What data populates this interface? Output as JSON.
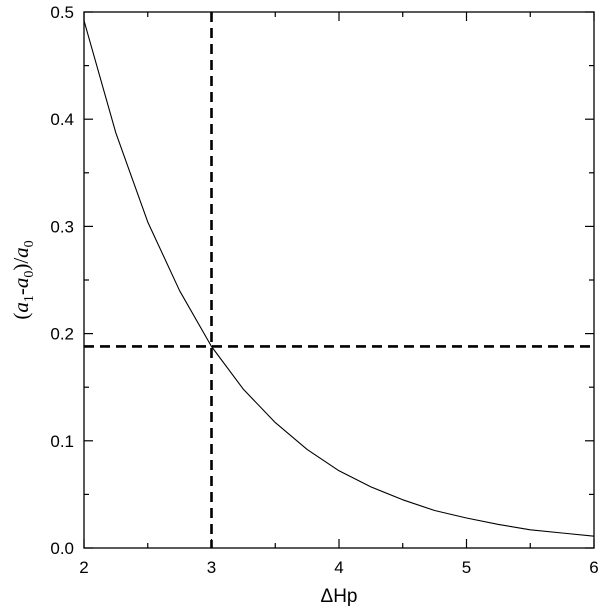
{
  "chart_data": {
    "type": "line",
    "title": "",
    "xlabel": "ΔHp",
    "ylabel": "(a1-a0)/a0",
    "ylabel_parts": {
      "open": "(",
      "a1": "a",
      "sub1": "1",
      "dash": "-",
      "a0": "a",
      "sub0": "0",
      "close": ")/",
      "a2": "a",
      "sub2": "0"
    },
    "xlim": [
      2,
      6
    ],
    "ylim": [
      0.0,
      0.5
    ],
    "x_ticks": [
      2,
      3,
      4,
      5,
      6
    ],
    "x_tick_labels": [
      "2",
      "3",
      "4",
      "5",
      "6"
    ],
    "y_ticks": [
      0.0,
      0.1,
      0.2,
      0.3,
      0.4,
      0.5
    ],
    "y_tick_labels": [
      "0.0",
      "0.1",
      "0.2",
      "0.3",
      "0.4",
      "0.5"
    ],
    "grid": false,
    "legend": "none",
    "series": [
      {
        "x": [
          2.0,
          2.25,
          2.5,
          2.75,
          3.0,
          3.25,
          3.5,
          3.75,
          4.0,
          4.25,
          4.5,
          4.75,
          5.0,
          5.25,
          5.5,
          5.75,
          6.0
        ],
        "y": [
          0.492,
          0.387,
          0.304,
          0.24,
          0.188,
          0.148,
          0.117,
          0.092,
          0.072,
          0.057,
          0.045,
          0.035,
          0.028,
          0.022,
          0.017,
          0.014,
          0.011
        ],
        "color": "#000000",
        "style": "solid"
      }
    ],
    "reference_lines": [
      {
        "orientation": "vertical",
        "x": 3.0,
        "style": "dashed",
        "color": "#000000"
      },
      {
        "orientation": "horizontal",
        "y": 0.188,
        "style": "dashed",
        "color": "#000000"
      }
    ]
  }
}
